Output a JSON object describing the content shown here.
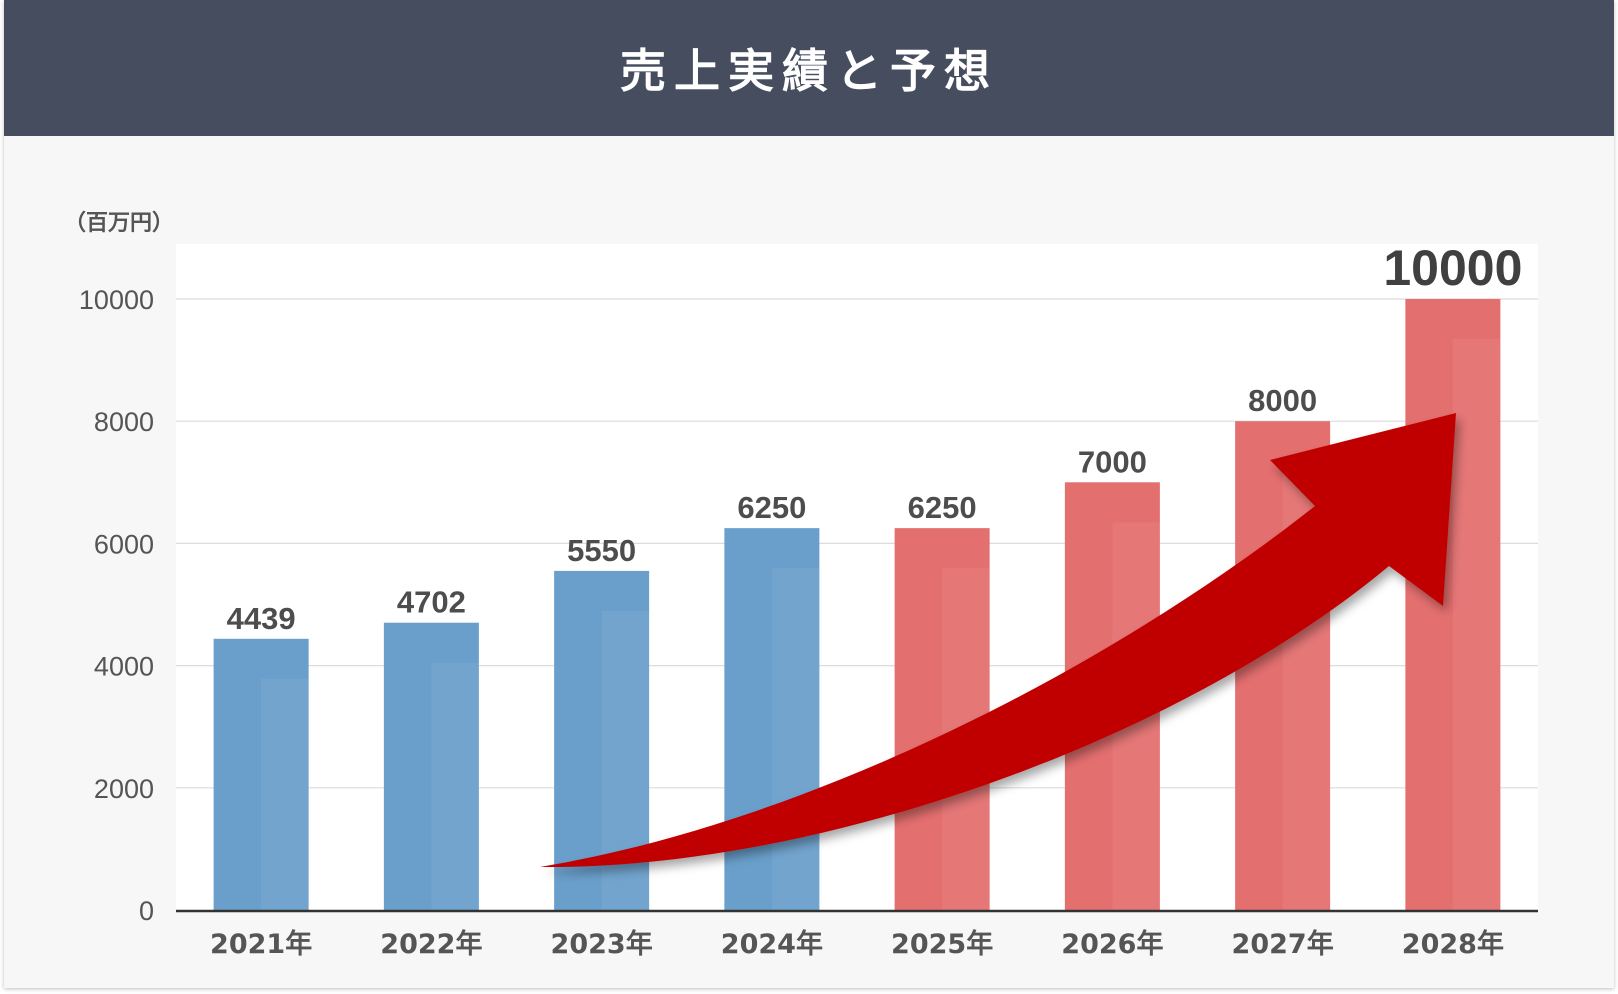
{
  "header": {
    "title": "売上実績と予想"
  },
  "unit_label": "（百万円）",
  "colors": {
    "actual": "#6a9fcb",
    "forecast": "#e46f6f",
    "arrow": "#c00000",
    "header_bg": "#454d5f"
  },
  "chart_data": {
    "type": "bar",
    "title": "売上実績と予想",
    "ylabel": "（百万円）",
    "xlabel": "",
    "categories": [
      "2021年",
      "2022年",
      "2023年",
      "2024年",
      "2025年",
      "2026年",
      "2027年",
      "2028年"
    ],
    "values": [
      4439,
      4702,
      5550,
      6250,
      6250,
      7000,
      8000,
      10000
    ],
    "data_labels": [
      "4439",
      "4702",
      "5550",
      "6250",
      "6250",
      "7000",
      "8000",
      "10000"
    ],
    "bar_kind": [
      "actual",
      "actual",
      "actual",
      "actual",
      "forecast",
      "forecast",
      "forecast",
      "forecast"
    ],
    "ylim": [
      0,
      10000
    ],
    "yticks": [
      0,
      2000,
      4000,
      6000,
      8000,
      10000
    ],
    "ytick_labels": [
      "0",
      "2000",
      "4000",
      "6000",
      "8000",
      "10000"
    ],
    "grid": true,
    "annotation": "upward trend arrow"
  }
}
